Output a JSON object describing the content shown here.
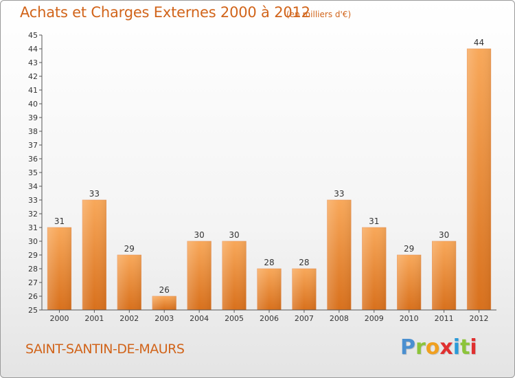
{
  "header": {
    "title": "Achats et Charges Externes 2000 à 2012",
    "subtitle": "(en milliers d'€)"
  },
  "footer": {
    "commune": "SAINT-SANTIN-DE-MAURS",
    "logo_letters": [
      "P",
      "r",
      "o",
      "x",
      "i",
      "t",
      "i"
    ],
    "logo_colors": [
      "#4a8fd0",
      "#8cc43a",
      "#f0a020",
      "#e03030",
      "#2a9ad8",
      "#8cc43a",
      "#e03030"
    ]
  },
  "colors": {
    "bar_light": "#f8a85a",
    "bar_dark": "#d8701c",
    "text_accent": "#d1641a",
    "axis": "#555555"
  },
  "chart_data": {
    "type": "bar",
    "categories": [
      "2000",
      "2001",
      "2002",
      "2003",
      "2004",
      "2005",
      "2006",
      "2007",
      "2008",
      "2009",
      "2010",
      "2011",
      "2012"
    ],
    "values": [
      31,
      33,
      29,
      26,
      30,
      30,
      28,
      28,
      33,
      31,
      29,
      30,
      44
    ],
    "ylim": [
      25,
      45
    ],
    "yticks": [
      25,
      26,
      27,
      28,
      29,
      30,
      31,
      32,
      33,
      34,
      35,
      36,
      37,
      38,
      39,
      40,
      41,
      42,
      43,
      44,
      45
    ],
    "grid": false,
    "data_labels": true
  }
}
